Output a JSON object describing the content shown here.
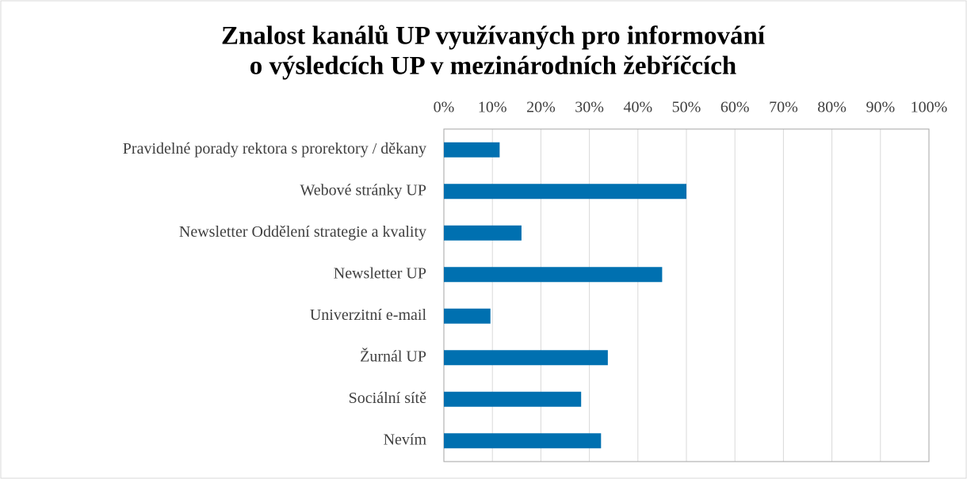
{
  "chart_data": {
    "type": "bar",
    "orientation": "horizontal",
    "title": [
      "Znalost kanálů UP využívaných pro informování",
      "o výsledcích UP v mezinárodních žebříčcích"
    ],
    "categories": [
      "Pravidelné porady rektora s prorektory / děkany",
      "Webové stránky UP",
      "Newsletter Oddělení strategie a kvality",
      "Newsletter UP",
      "Univerzitní e-mail",
      "Žurnál UP",
      "Sociální sítě",
      "Nevím"
    ],
    "values": [
      11.5,
      50,
      16,
      45,
      9.6,
      33.8,
      28.3,
      32.4
    ],
    "color": "#0070b0",
    "xlim": [
      0,
      100
    ],
    "xticks": [
      {
        "value": 0,
        "label": "0%"
      },
      {
        "value": 10,
        "label": "10%"
      },
      {
        "value": 20,
        "label": "20%"
      },
      {
        "value": 30,
        "label": "30%"
      },
      {
        "value": 40,
        "label": "40%"
      },
      {
        "value": 50,
        "label": "50%"
      },
      {
        "value": 60,
        "label": "60%"
      },
      {
        "value": 70,
        "label": "70%"
      },
      {
        "value": 80,
        "label": "80%"
      },
      {
        "value": 90,
        "label": "90%"
      },
      {
        "value": 100,
        "label": "100%"
      }
    ],
    "grid": true
  }
}
